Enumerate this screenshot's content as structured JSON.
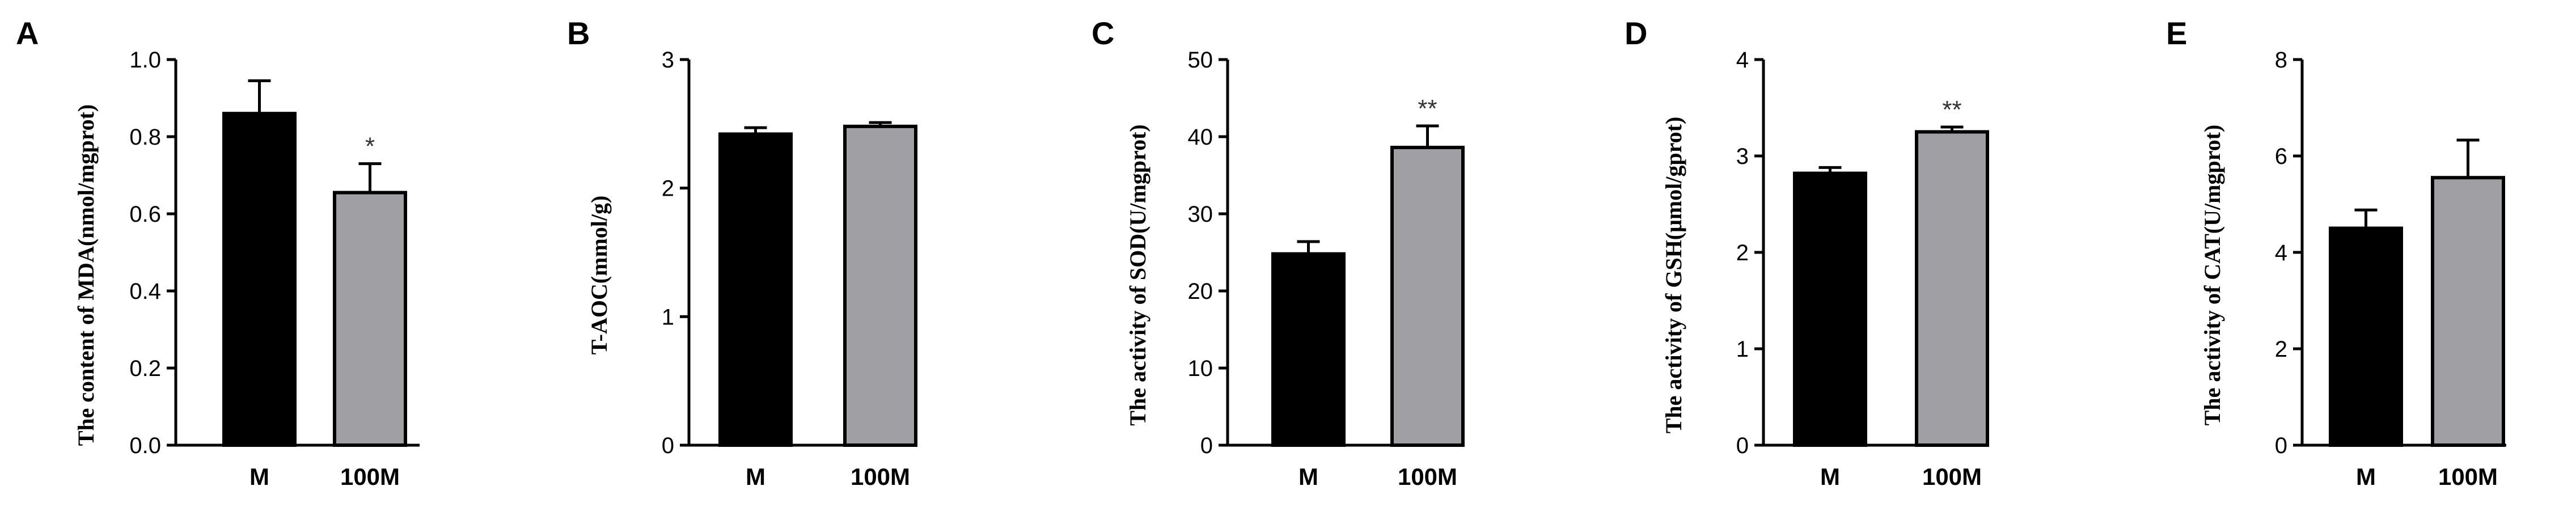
{
  "chart_data": [
    {
      "panel": "A",
      "type": "bar",
      "categories": [
        "M",
        "100M"
      ],
      "values": [
        0.86,
        0.655
      ],
      "errors": [
        0.085,
        0.075
      ],
      "significance": [
        "",
        "*"
      ],
      "ylabel": "The content of MDA(nmol/mgprot)",
      "ylim": [
        0,
        1.0
      ],
      "yticks": [
        "0.0",
        "0.2",
        "0.4",
        "0.6",
        "0.8",
        "1.0"
      ],
      "colors": [
        "#000000",
        "#a0a0a4"
      ]
    },
    {
      "panel": "B",
      "type": "bar",
      "categories": [
        "M",
        "100M"
      ],
      "values": [
        2.42,
        2.48
      ],
      "errors": [
        0.05,
        0.03
      ],
      "significance": [
        "",
        ""
      ],
      "ylabel": "T-AOC(mmol/g)",
      "ylim": [
        0,
        3
      ],
      "yticks": [
        "0",
        "1",
        "2",
        "3"
      ],
      "colors": [
        "#000000",
        "#a0a0a4"
      ]
    },
    {
      "panel": "C",
      "type": "bar",
      "categories": [
        "M",
        "100M"
      ],
      "values": [
        24.8,
        38.6
      ],
      "errors": [
        1.6,
        2.8
      ],
      "significance": [
        "",
        "**"
      ],
      "ylabel": "The activity of SOD(U/mgprot)",
      "ylim": [
        0,
        50
      ],
      "yticks": [
        "0",
        "10",
        "20",
        "30",
        "40",
        "50"
      ],
      "colors": [
        "#000000",
        "#a0a0a4"
      ]
    },
    {
      "panel": "D",
      "type": "bar",
      "categories": [
        "M",
        "100M"
      ],
      "values": [
        2.82,
        3.25
      ],
      "errors": [
        0.06,
        0.05
      ],
      "significance": [
        "",
        "**"
      ],
      "ylabel": "The activity of GSH(μmol/gprot)",
      "ylim": [
        0,
        4
      ],
      "yticks": [
        "0",
        "1",
        "2",
        "3",
        "4"
      ],
      "colors": [
        "#000000",
        "#a0a0a4"
      ]
    },
    {
      "panel": "E",
      "type": "bar",
      "categories": [
        "M",
        "100M"
      ],
      "values": [
        4.5,
        5.55
      ],
      "errors": [
        0.38,
        0.78
      ],
      "significance": [
        "",
        ""
      ],
      "ylabel": "The activity of CAT(U/mgprot)",
      "ylim": [
        0,
        8
      ],
      "yticks": [
        "0",
        "2",
        "4",
        "6",
        "8"
      ],
      "colors": [
        "#000000",
        "#a0a0a4"
      ]
    }
  ]
}
